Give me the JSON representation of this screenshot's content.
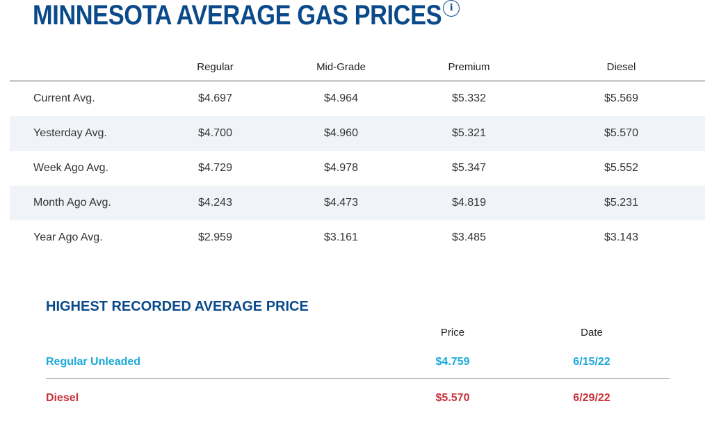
{
  "header": {
    "title": "MINNESOTA AVERAGE GAS PRICES",
    "info_icon_glyph": "i",
    "info_icon": "info-icon"
  },
  "prices_table": {
    "columns": [
      "",
      "Regular",
      "Mid-Grade",
      "Premium",
      "Diesel"
    ],
    "rows": [
      {
        "label": "Current Avg.",
        "values": [
          "$4.697",
          "$4.964",
          "$5.332",
          "$5.569"
        ]
      },
      {
        "label": "Yesterday Avg.",
        "values": [
          "$4.700",
          "$4.960",
          "$5.321",
          "$5.570"
        ]
      },
      {
        "label": "Week Ago Avg.",
        "values": [
          "$4.729",
          "$4.978",
          "$5.347",
          "$5.552"
        ]
      },
      {
        "label": "Month Ago Avg.",
        "values": [
          "$4.243",
          "$4.473",
          "$4.819",
          "$5.231"
        ]
      },
      {
        "label": "Year Ago Avg.",
        "values": [
          "$2.959",
          "$3.161",
          "$3.485",
          "$3.143"
        ]
      }
    ]
  },
  "highest": {
    "title": "HIGHEST RECORDED AVERAGE PRICE",
    "price_header": "Price",
    "date_header": "Date",
    "rows": [
      {
        "label": "Regular Unleaded",
        "price": "$4.759",
        "date": "6/15/22"
      },
      {
        "label": "Diesel",
        "price": "$5.570",
        "date": "6/29/22"
      }
    ]
  },
  "colors": {
    "title_blue": "#0a4a8a",
    "regular_cyan": "#1aa8d8",
    "diesel_red": "#c8303a",
    "alt_row_bg": "#f0f4f8"
  }
}
